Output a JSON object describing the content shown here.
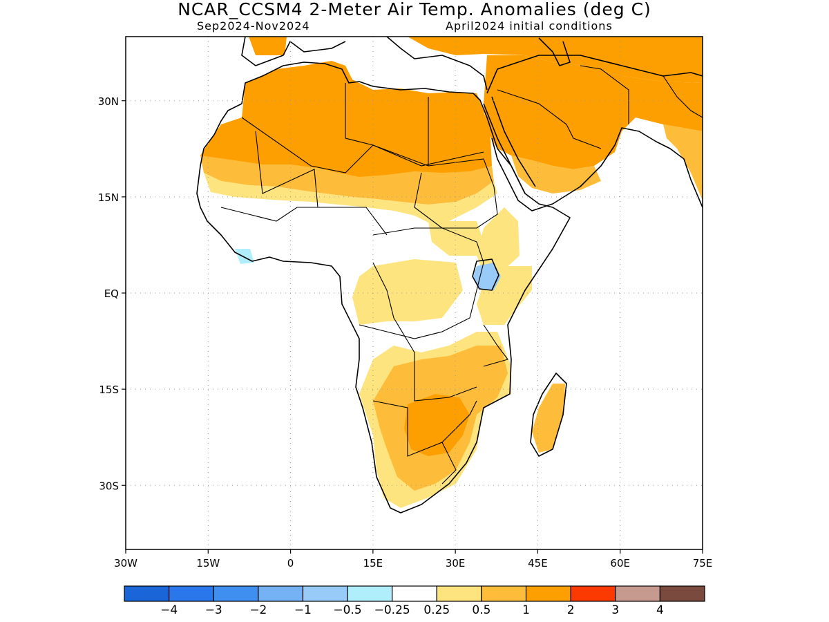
{
  "header": {
    "title": "NCAR_CCSM4 2-Meter Air Temp. Anomalies (deg C)",
    "period": "Sep2024-Nov2024",
    "init": "April2024 initial conditions"
  },
  "map": {
    "lat_labels": [
      {
        "label": "30N",
        "lat": 30
      },
      {
        "label": "15N",
        "lat": 15
      },
      {
        "label": "EQ",
        "lat": 0
      },
      {
        "label": "15S",
        "lat": -15
      },
      {
        "label": "30S",
        "lat": -30
      }
    ],
    "lon_labels": [
      {
        "label": "30W",
        "lon": -30
      },
      {
        "label": "15W",
        "lon": -15
      },
      {
        "label": "0",
        "lon": 0
      },
      {
        "label": "15E",
        "lon": 15
      },
      {
        "label": "30E",
        "lon": 30
      },
      {
        "label": "45E",
        "lon": 45
      },
      {
        "label": "60E",
        "lon": 60
      },
      {
        "label": "75E",
        "lon": 75
      }
    ],
    "lon_range": [
      -30,
      75
    ],
    "lat_range": [
      -40,
      40
    ],
    "grid": "dotted"
  },
  "legend": {
    "colors": [
      "#1a66d9",
      "#2a77ec",
      "#3f8ff0",
      "#74b1f5",
      "#98cbf7",
      "#b0eefb",
      "#ffffff",
      "#fde47f",
      "#fdbd3b",
      "#fd9f00",
      "#fa3a00",
      "#c79a90",
      "#7a4a3f"
    ],
    "labels": [
      "-4",
      "-3",
      "-2",
      "-1",
      "-0.5",
      "-0.25",
      "0.25",
      "0.5",
      "1",
      "2",
      "3",
      "4"
    ]
  },
  "colors": {
    "level_0_25": "#fde47f",
    "level_0_5": "#fdbd3b",
    "level_1": "#fd9f00",
    "neg_0_25": "#b0eefb",
    "neg_0_5": "#98cbf7",
    "neg_1": "#74b1f5"
  }
}
